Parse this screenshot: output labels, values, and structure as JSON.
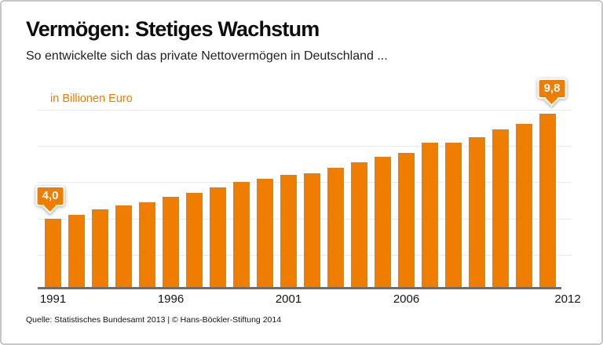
{
  "header": {
    "title": "Vermögen: Stetiges Wachstum",
    "subtitle": "So entwickelte sich das private Nettovermögen in Deutschland ..."
  },
  "chart_data": {
    "type": "bar",
    "title": "Vermögen: Stetiges Wachstum",
    "subtitle": "So entwickelte sich das private Nettovermögen in Deutschland ...",
    "unit": "in Billionen Euro",
    "categories": [
      1991,
      1992,
      1993,
      1994,
      1995,
      1996,
      1997,
      1998,
      1999,
      2000,
      2001,
      2002,
      2003,
      2004,
      2005,
      2006,
      2007,
      2008,
      2009,
      2010,
      2011,
      2012
    ],
    "values": [
      4.0,
      4.2,
      4.5,
      4.7,
      4.9,
      5.2,
      5.4,
      5.7,
      6.0,
      6.2,
      6.4,
      6.5,
      6.8,
      7.1,
      7.4,
      7.6,
      8.2,
      8.2,
      8.5,
      8.9,
      9.2,
      9.8
    ],
    "x_tick_labels": [
      "1991",
      "1996",
      "2001",
      "2006",
      "2012"
    ],
    "ylim": [
      0,
      10
    ],
    "gridline_values": [
      2,
      4,
      6,
      8,
      10
    ],
    "grid_on": true,
    "legend": "none",
    "bar_color": "#ee7d00",
    "annotations": [
      {
        "category": 1991,
        "label": "4,0"
      },
      {
        "category": 2012,
        "label": "9,8"
      }
    ]
  },
  "footer": {
    "source": "Quelle: Statistisches Bundesamt 2013 | © Hans-Böckler-Stiftung 2014"
  },
  "colors": {
    "accent_orange": "#ee7d00",
    "axis_line": "#6d6d6d",
    "gridline": "#e9e9e9",
    "card_border": "#c7c7c7",
    "title_text": "#0d0d0d",
    "callout_text": "#ffffff"
  }
}
